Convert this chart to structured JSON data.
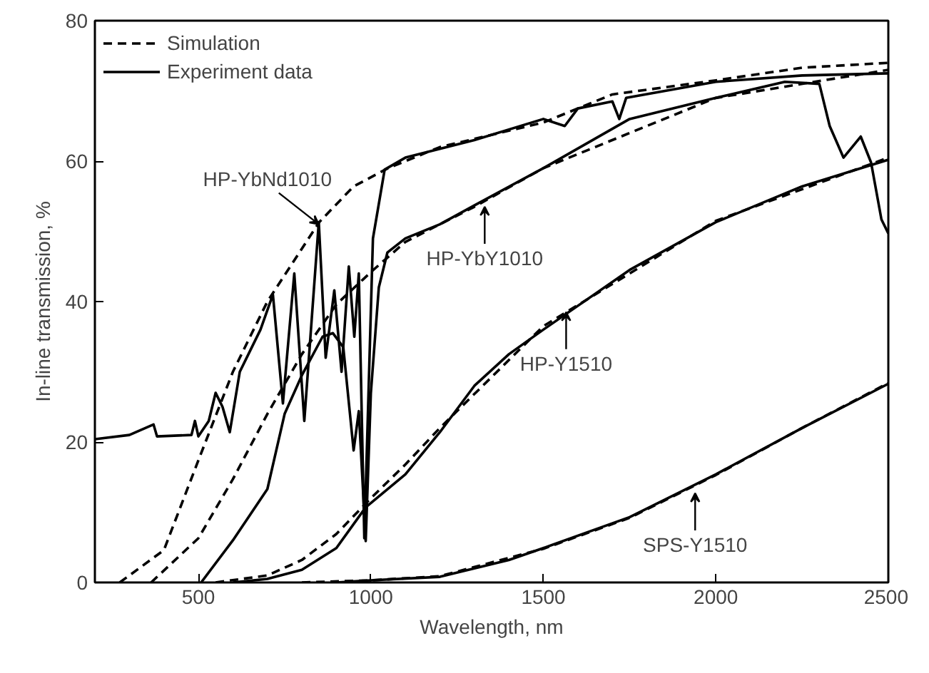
{
  "chart_data": {
    "type": "line",
    "xlabel": "Wavelength, nm",
    "ylabel": "In-line transmission, %",
    "xlim": [
      200,
      2500
    ],
    "ylim": [
      0,
      80
    ],
    "xticks": [
      500,
      1000,
      1500,
      2000,
      2500
    ],
    "yticks": [
      0,
      20,
      40,
      60,
      80
    ],
    "grid": false,
    "legend": "top left",
    "marker": "none",
    "series": [
      {
        "name": "Simulation",
        "color": "#000000",
        "line_style": "dashed",
        "x": [
          272,
          400,
          500,
          600,
          700,
          850,
          950,
          1050,
          1200,
          1500,
          1700,
          2000,
          2250,
          2500
        ],
        "values": [
          0,
          4.6,
          17.4,
          30,
          40,
          51.3,
          56.4,
          59,
          62,
          65.5,
          69.5,
          71.5,
          73.3,
          74
        ]
      },
      {
        "color": "#000000",
        "line_style": "dashed",
        "x": [
          363,
          500,
          600,
          700,
          800,
          900,
          1000,
          1100,
          1300,
          1500,
          2000,
          2500
        ],
        "values": [
          0,
          6.3,
          14.7,
          24,
          32.5,
          39.6,
          44.2,
          48.5,
          53.5,
          59,
          69,
          73
        ]
      },
      {
        "color": "#000000",
        "line_style": "dashed",
        "x": [
          550,
          700,
          800,
          900,
          1000,
          1100,
          1200,
          1500,
          2000,
          2500
        ],
        "values": [
          0,
          1,
          3.2,
          6.9,
          12,
          16.8,
          22,
          36.5,
          51.5,
          60.5
        ]
      },
      {
        "color": "#000000",
        "line_style": "dashed",
        "x": [
          800,
          1000,
          1200,
          1500,
          1750,
          2000,
          2250,
          2500
        ],
        "values": [
          0,
          0.3,
          0.9,
          4.8,
          9.2,
          15.3,
          22,
          28.4
        ]
      },
      {
        "name": "Experiment data",
        "color": "#000000",
        "line_style": "solid",
        "x": [
          200,
          300,
          370,
          380,
          480,
          490,
          500,
          530,
          550,
          570,
          591,
          620,
          680,
          716,
          745,
          778,
          807,
          849,
          869,
          894,
          915,
          936,
          952,
          965,
          981,
          1006,
          1040,
          1100,
          1300,
          1500,
          1562,
          1600,
          1700,
          1720,
          1740,
          2000,
          2250,
          2500
        ],
        "values": [
          20.4,
          21,
          22.5,
          20.8,
          21,
          23,
          20.8,
          23,
          27,
          25,
          21.4,
          30,
          36,
          41,
          25.5,
          44,
          23,
          51.3,
          32,
          41.6,
          30,
          45,
          35,
          44,
          6.3,
          49,
          58.8,
          60.5,
          63,
          66,
          65,
          67.5,
          68.5,
          66,
          69,
          71.3,
          72.2,
          72.5
        ]
      },
      {
        "color": "#000000",
        "line_style": "solid",
        "x": [
          508,
          600,
          700,
          750,
          800,
          860,
          890,
          920,
          950,
          965,
          985,
          1000,
          1023,
          1048,
          1100,
          1200,
          1300,
          1500,
          1750,
          2000,
          2200,
          2300,
          2330,
          2370,
          2420,
          2450,
          2480,
          2500
        ],
        "values": [
          0,
          6,
          13.3,
          24,
          29.5,
          35,
          35.5,
          33.5,
          18.8,
          24.4,
          5.9,
          27,
          42,
          47,
          49,
          51,
          53.7,
          59,
          66,
          69,
          71.3,
          71,
          65,
          60.5,
          63.5,
          59.8,
          51.7,
          49.7
        ]
      },
      {
        "color": "#000000",
        "line_style": "solid",
        "x": [
          600,
          700,
          800,
          900,
          985,
          1100,
          1200,
          1300,
          1400,
          1500,
          1750,
          2000,
          2250,
          2500
        ],
        "values": [
          0,
          0.5,
          1.8,
          4.9,
          10.7,
          15.4,
          21.4,
          28,
          32.5,
          36,
          44.5,
          51.3,
          56.4,
          60.2
        ]
      },
      {
        "color": "#000000",
        "line_style": "solid",
        "x": [
          900,
          1000,
          1200,
          1400,
          1500,
          1750,
          2000,
          2250,
          2500
        ],
        "values": [
          0,
          0.3,
          0.8,
          3.2,
          4.9,
          9.3,
          15.4,
          22,
          28.3
        ]
      }
    ],
    "annotations": [
      {
        "text": "HP-YbNd1010",
        "x": 849,
        "y": 51
      },
      {
        "text": "HP-YbY1010",
        "x": 1330,
        "y": 53.5
      },
      {
        "text": "HP-Y1510",
        "x": 1566,
        "y": 38.5
      },
      {
        "text": "SPS-Y1510",
        "x": 1940,
        "y": 12.7
      }
    ]
  }
}
